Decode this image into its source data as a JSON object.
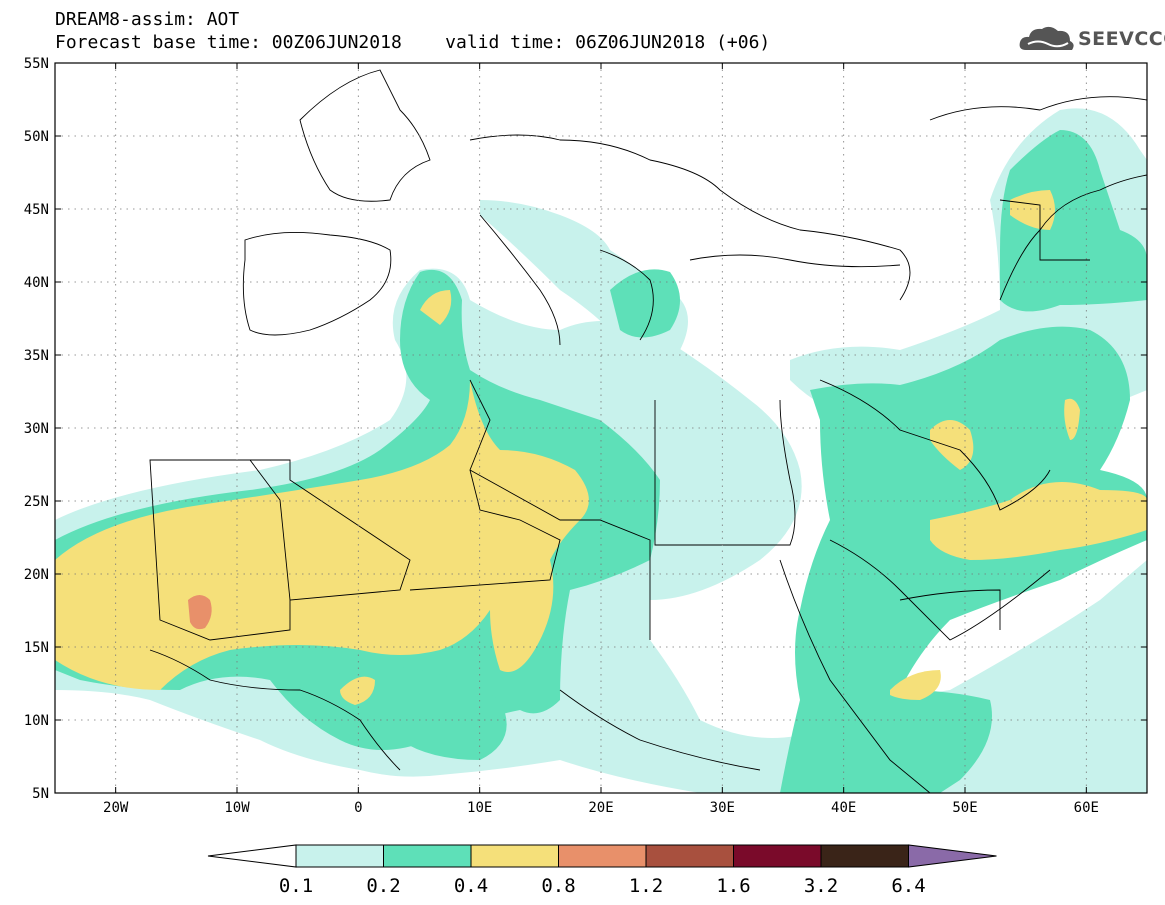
{
  "header": {
    "title": "DREAM8-assim: AOT",
    "base_time_label": "Forecast base time: 00Z06JUN2018",
    "valid_time_label": "valid time: 06Z06JUN2018 (+06)"
  },
  "logo": {
    "text": "SEEVCCC",
    "icon": "cloud-icon"
  },
  "map": {
    "lat_ticks": [
      "55N",
      "50N",
      "45N",
      "40N",
      "35N",
      "30N",
      "25N",
      "20N",
      "15N",
      "10N",
      "5N"
    ],
    "lon_ticks": [
      "20W",
      "10W",
      "0",
      "10E",
      "20E",
      "30E",
      "40E",
      "50E",
      "60E"
    ],
    "lon_range": [
      -25,
      65
    ],
    "lat_range": [
      5,
      55
    ]
  },
  "colorbar": {
    "levels": [
      "0.1",
      "0.2",
      "0.4",
      "0.8",
      "1.2",
      "1.6",
      "3.2",
      "6.4"
    ],
    "colors": [
      "#ffffff",
      "#c8f2ec",
      "#5ee0b8",
      "#f5e07a",
      "#e8906a",
      "#a8503e",
      "#7a0a2a",
      "#3a2418",
      "#8a6aa8"
    ]
  },
  "colors": {
    "c01": "#c8f2ec",
    "c02": "#5ee0b8",
    "c04": "#f5e07a",
    "c08": "#e8906a",
    "border": "#000000",
    "grid": "#777777"
  }
}
